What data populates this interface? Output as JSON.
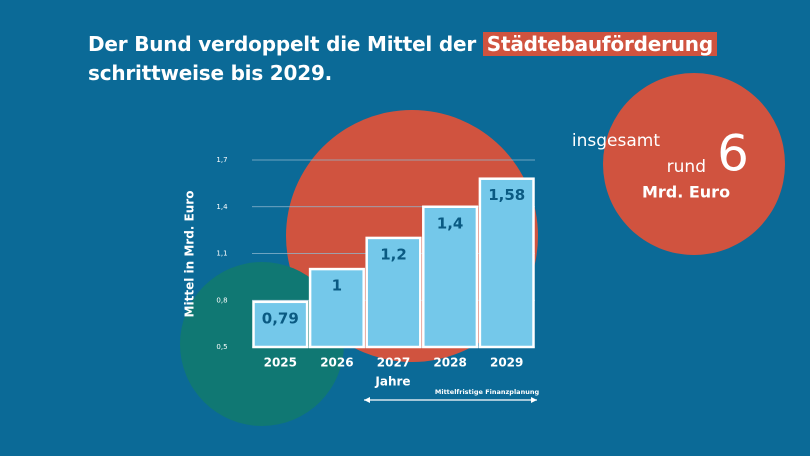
{
  "title": {
    "line1": "Der Bund verdoppelt die Mittel der ",
    "highlight": "Städtebauförderung",
    "line2": "schrittweise bis 2029."
  },
  "total": {
    "prefix": "insgesamt",
    "word": "rund",
    "value": 6,
    "unit": "Mrd. Euro"
  },
  "chart_data": {
    "type": "bar",
    "y_label": "Mittel in Mrd. Euro",
    "x_label": "Jahre",
    "annotation": "Mittelfristige Finanzplanung",
    "categories": [
      "2025",
      "2026",
      "2027",
      "2028",
      "2029"
    ],
    "values": [
      0.79,
      1,
      1.2,
      1.4,
      1.58
    ],
    "value_labels": [
      "0,79",
      "1",
      "1,2",
      "1,4",
      "1,58"
    ],
    "color": "#74c8ea",
    "ylim": [
      0.5,
      1.7
    ],
    "yticks": [
      {
        "value": 0.5,
        "label": "0,5"
      },
      {
        "value": 0.8,
        "label": "0,8"
      },
      {
        "value": 1.1,
        "label": "1,1"
      },
      {
        "value": 1.4,
        "label": "1,4"
      },
      {
        "value": 1.7,
        "label": "1,7"
      }
    ],
    "grid": true
  }
}
